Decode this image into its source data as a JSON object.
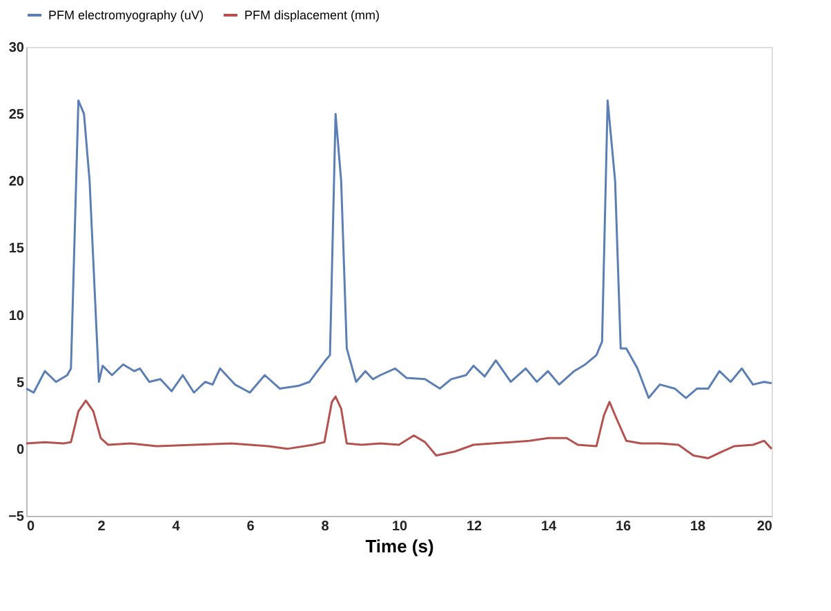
{
  "chart_data": {
    "type": "line",
    "xlabel": "Time (s)",
    "xlim": [
      0,
      20
    ],
    "xticks": [
      0,
      2,
      4,
      6,
      8,
      10,
      12,
      14,
      16,
      18,
      20
    ],
    "ylim": [
      -5,
      30
    ],
    "yticks": [
      -5,
      0,
      5,
      10,
      15,
      20,
      25,
      30
    ],
    "grid": false,
    "legend": "top",
    "line_style": "solid",
    "marker": "none",
    "series": [
      {
        "name": "PFM electromyography (uV)",
        "color": "#5b7fb5",
        "x": [
          0,
          0.2,
          0.5,
          0.8,
          1.1,
          1.2,
          1.4,
          1.55,
          1.7,
          1.95,
          2.05,
          2.3,
          2.6,
          2.9,
          3.05,
          3.3,
          3.6,
          3.9,
          4.2,
          4.5,
          4.8,
          5.0,
          5.2,
          5.6,
          6.0,
          6.4,
          6.8,
          7.3,
          7.6,
          8.0,
          8.15,
          8.3,
          8.45,
          8.6,
          8.85,
          9.1,
          9.3,
          9.5,
          9.9,
          10.2,
          10.7,
          11.1,
          11.4,
          11.8,
          12.0,
          12.3,
          12.6,
          13.0,
          13.4,
          13.7,
          14.0,
          14.3,
          14.7,
          15.0,
          15.3,
          15.45,
          15.6,
          15.8,
          15.95,
          16.1,
          16.4,
          16.7,
          17.0,
          17.4,
          17.7,
          18.0,
          18.3,
          18.6,
          18.9,
          19.2,
          19.5,
          19.8,
          20
        ],
        "values": [
          4.5,
          4.2,
          5.8,
          5,
          5.5,
          6,
          26,
          25,
          20,
          5,
          6.2,
          5.5,
          6.3,
          5.8,
          6,
          5,
          5.2,
          4.3,
          5.5,
          4.2,
          5,
          4.8,
          6,
          4.8,
          4.2,
          5.5,
          4.5,
          4.7,
          5,
          6.5,
          7,
          25,
          20,
          7.5,
          5,
          5.8,
          5.2,
          5.5,
          6,
          5.3,
          5.2,
          4.5,
          5.2,
          5.5,
          6.2,
          5.4,
          6.6,
          5,
          6,
          5,
          5.8,
          4.8,
          5.8,
          6.3,
          7,
          8,
          26,
          20,
          7.5,
          7.5,
          6,
          3.8,
          4.8,
          4.5,
          3.8,
          4.5,
          4.5,
          5.8,
          5,
          6,
          4.8,
          5,
          4.9
        ]
      },
      {
        "name": "PFM displacement (mm)",
        "color": "#b5524f",
        "x": [
          0,
          0.5,
          1.0,
          1.2,
          1.4,
          1.6,
          1.8,
          2.0,
          2.2,
          2.8,
          3.5,
          4.5,
          5.5,
          6.5,
          7.0,
          7.7,
          8.0,
          8.2,
          8.3,
          8.45,
          8.6,
          9.0,
          9.5,
          10.0,
          10.4,
          10.7,
          11.0,
          11.5,
          12.0,
          12.5,
          13.0,
          13.5,
          14,
          14.5,
          14.8,
          15.3,
          15.5,
          15.65,
          15.8,
          16.1,
          16.5,
          17,
          17.5,
          17.9,
          18.3,
          18.6,
          19.0,
          19.5,
          19.8,
          20
        ],
        "values": [
          0.4,
          0.5,
          0.4,
          0.5,
          2.8,
          3.6,
          2.8,
          0.8,
          0.3,
          0.4,
          0.2,
          0.3,
          0.4,
          0.2,
          0,
          0.3,
          0.5,
          3.5,
          3.9,
          3,
          0.4,
          0.3,
          0.4,
          0.3,
          1,
          0.5,
          -0.5,
          -0.2,
          0.3,
          0.4,
          0.5,
          0.6,
          0.8,
          0.8,
          0.3,
          0.2,
          2.5,
          3.5,
          2.5,
          0.6,
          0.4,
          0.4,
          0.3,
          -0.5,
          -0.7,
          -0.3,
          0.2,
          0.3,
          0.6,
          0
        ]
      }
    ]
  }
}
